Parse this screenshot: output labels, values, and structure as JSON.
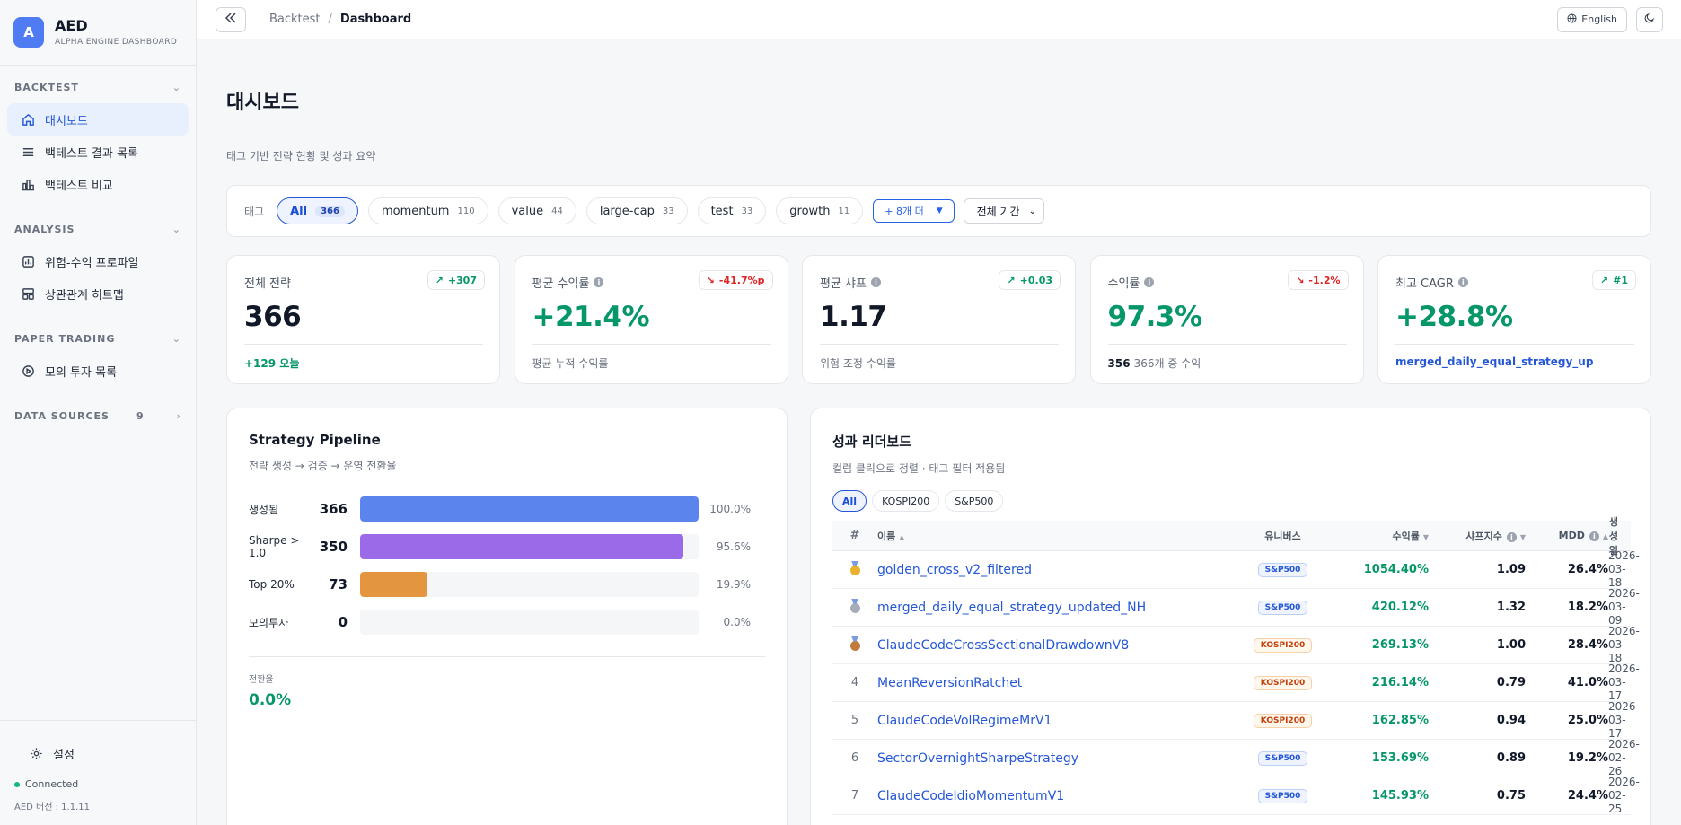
{
  "brand": {
    "logo_letter": "A",
    "name": "AED",
    "subtitle": "ALPHA ENGINE DASHBOARD"
  },
  "sidebar": {
    "sections": [
      {
        "title": "BACKTEST",
        "items": [
          {
            "label": "대시보드",
            "icon": "home-icon",
            "active": true
          },
          {
            "label": "백테스트 결과 목록",
            "icon": "list-icon"
          },
          {
            "label": "백테스트 비교",
            "icon": "bar-chart-icon"
          }
        ]
      },
      {
        "title": "ANALYSIS",
        "items": [
          {
            "label": "위험-수익 프로파일",
            "icon": "chart-box-icon"
          },
          {
            "label": "상관관계 히트맵",
            "icon": "grid-icon"
          }
        ]
      },
      {
        "title": "PAPER TRADING",
        "items": [
          {
            "label": "모의 투자 목록",
            "icon": "play-circle-icon"
          }
        ]
      },
      {
        "title": "DATA SOURCES",
        "count": "9"
      }
    ],
    "settings_label": "설정",
    "status": "Connected",
    "version": "AED 버전 : 1.1.11"
  },
  "topbar": {
    "breadcrumb": [
      "Backtest",
      "Dashboard"
    ],
    "language": "English"
  },
  "page": {
    "title": "대시보드",
    "subtitle": "태그 기반 전략 현황 및 성과 요약"
  },
  "filters": {
    "label": "태그",
    "tags": [
      {
        "name": "All",
        "count": "366",
        "active": true
      },
      {
        "name": "momentum",
        "count": "110"
      },
      {
        "name": "value",
        "count": "44"
      },
      {
        "name": "large-cap",
        "count": "33"
      },
      {
        "name": "test",
        "count": "33"
      },
      {
        "name": "growth",
        "count": "11"
      }
    ],
    "more": "+ 8개 더",
    "period": "전체 기간"
  },
  "stats": [
    {
      "label": "전체 전략",
      "value": "366",
      "badge": "+307",
      "trend": "up",
      "foot": "+129 오늘",
      "info": false
    },
    {
      "label": "평균 수익률",
      "value": "+21.4%",
      "badge": "-41.7%p",
      "trend": "down",
      "foot": "평균 누적 수익률",
      "info": true
    },
    {
      "label": "평균 샤프",
      "value": "1.17",
      "badge": "+0.03",
      "trend": "up",
      "foot": "위험 조정 수익률",
      "info": true
    },
    {
      "label": "수익률",
      "value": "97.3%",
      "badge": "-1.2%",
      "trend": "down",
      "foot_strong": "356",
      "foot": "366개 중 수익",
      "info": true
    },
    {
      "label": "최고 CAGR",
      "value": "+28.8%",
      "badge": "#1",
      "trend": "up",
      "foot": "merged_daily_equal_strategy_up",
      "info": true
    }
  ],
  "pipeline": {
    "title": "Strategy Pipeline",
    "subtitle": "전략 생성 → 검증 → 운영 전환율",
    "rows": [
      {
        "name": "생성됨",
        "value": "366",
        "pct": "100.0%",
        "fraction": 1.0,
        "color": "#5b84ec"
      },
      {
        "name": "Sharpe > 1.0",
        "value": "350",
        "pct": "95.6%",
        "fraction": 0.956,
        "color": "#9b6ae9"
      },
      {
        "name": "Top 20%",
        "value": "73",
        "pct": "19.9%",
        "fraction": 0.199,
        "color": "#e3963f"
      },
      {
        "name": "모의투자",
        "value": "0",
        "pct": "0.0%",
        "fraction": 0.0,
        "color": "#cccccc"
      }
    ],
    "conversion_label": "전환율",
    "conversion_value": "0.0%"
  },
  "leaderboard": {
    "title": "성과 리더보드",
    "subtitle": "컬럼 클릭으로 정렬 · 태그 필터 적용됨",
    "universes": [
      "All",
      "KOSPI200",
      "S&P500"
    ],
    "columns": {
      "rank": "#",
      "name": "이름",
      "universe": "유니버스",
      "ret": "수익률",
      "sharpe": "샤프지수",
      "mdd": "MDD",
      "date": "생성일"
    },
    "rows": [
      {
        "rank": "1",
        "medal": "gold",
        "name": "golden_cross_v2_filtered",
        "universe": "S&P500",
        "ret": "1054.40%",
        "sharpe": "1.09",
        "mdd": "26.4%",
        "date": "2026-03-18"
      },
      {
        "rank": "2",
        "medal": "silver",
        "name": "merged_daily_equal_strategy_updated_NH",
        "universe": "S&P500",
        "ret": "420.12%",
        "sharpe": "1.32",
        "mdd": "18.2%",
        "date": "2026-03-09"
      },
      {
        "rank": "3",
        "medal": "bronze",
        "name": "ClaudeCodeCrossSectionalDrawdownV8",
        "universe": "KOSPI200",
        "ret": "269.13%",
        "sharpe": "1.00",
        "mdd": "28.4%",
        "date": "2026-03-18"
      },
      {
        "rank": "4",
        "name": "MeanReversionRatchet",
        "universe": "KOSPI200",
        "ret": "216.14%",
        "sharpe": "0.79",
        "mdd": "41.0%",
        "date": "2026-03-17"
      },
      {
        "rank": "5",
        "name": "ClaudeCodeVolRegimeMrV1",
        "universe": "KOSPI200",
        "ret": "162.85%",
        "sharpe": "0.94",
        "mdd": "25.0%",
        "date": "2026-03-17"
      },
      {
        "rank": "6",
        "name": "SectorOvernightSharpeStrategy",
        "universe": "S&P500",
        "ret": "153.69%",
        "sharpe": "0.89",
        "mdd": "19.2%",
        "date": "2026-02-26"
      },
      {
        "rank": "7",
        "name": "ClaudeCodeIdioMomentumV1",
        "universe": "S&P500",
        "ret": "145.93%",
        "sharpe": "0.75",
        "mdd": "24.4%",
        "date": "2026-02-25"
      }
    ]
  }
}
